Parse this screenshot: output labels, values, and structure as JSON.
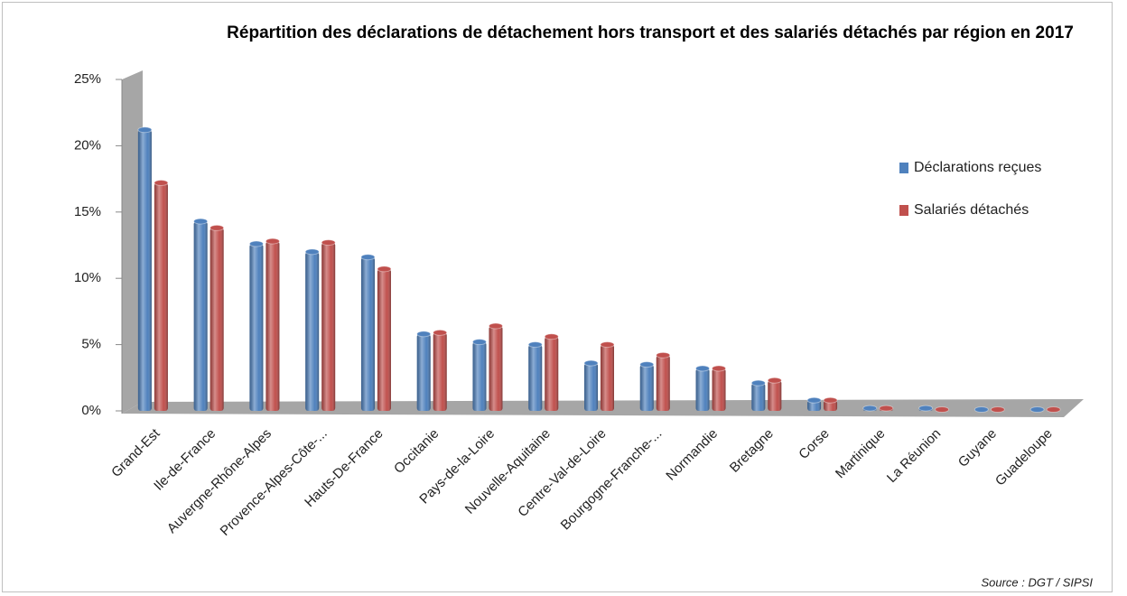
{
  "chart_data": {
    "type": "bar",
    "title": "Répartition des déclarations de détachement hors transport et des salariés détachés par région en 2017",
    "source": "Source : DGT / SIPSI",
    "categories": [
      "Grand-Est",
      "Ile-de-France",
      "Auvergne-Rhône-Alpes",
      "Provence-Alpes-Côte-...",
      "Hauts-De-France",
      "Occitanie",
      "Pays-de-la-Loire",
      "Nouvelle-Aquitaine",
      "Centre-Val-de-Loire",
      "Bourgogne-Franche-...",
      "Normandie",
      "Bretagne",
      "Corse",
      "Martinique",
      "La Réunion",
      "Guyane",
      "Guadeloupe"
    ],
    "series": [
      {
        "name": "Déclarations reçues",
        "color": "#4f81bd",
        "values": [
          21.2,
          14.3,
          12.6,
          12.0,
          11.6,
          5.8,
          5.2,
          5.0,
          3.6,
          3.5,
          3.2,
          2.1,
          0.8,
          0.2,
          0.2,
          0.1,
          0.1
        ]
      },
      {
        "name": "Salariés détachés",
        "color": "#c0504d",
        "values": [
          17.2,
          13.8,
          12.8,
          12.7,
          10.7,
          5.9,
          6.4,
          5.6,
          5.0,
          4.2,
          3.2,
          2.3,
          0.8,
          0.2,
          0.1,
          0.1,
          0.1
        ]
      }
    ],
    "ylim": [
      0,
      25
    ],
    "yticks": [
      {
        "value": 0,
        "label": "0%"
      },
      {
        "value": 5,
        "label": "5%"
      },
      {
        "value": 10,
        "label": "10%"
      },
      {
        "value": 15,
        "label": "15%"
      },
      {
        "value": 20,
        "label": "20%"
      },
      {
        "value": 25,
        "label": "25%"
      }
    ],
    "legend": "right"
  }
}
